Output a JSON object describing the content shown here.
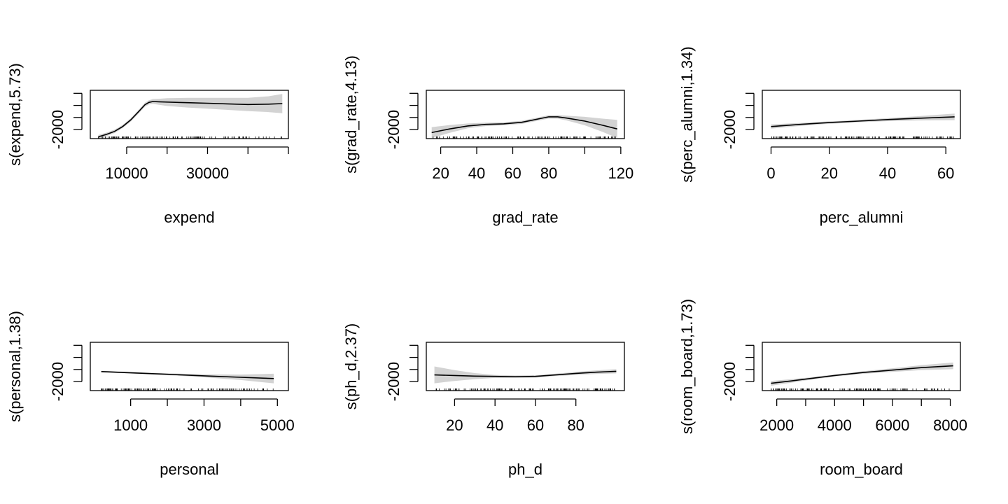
{
  "chart_data": [
    {
      "type": "line",
      "xlabel": "expend",
      "ylabel": "s(expend,5.73)",
      "xlim": [
        1000,
        50000
      ],
      "ylim": [
        -3500,
        4500
      ],
      "xticks": [
        10000,
        20000,
        30000,
        40000,
        50000
      ],
      "xtick_labels": [
        "10000",
        "",
        "30000",
        "",
        ""
      ],
      "yticks": [
        -2000,
        0,
        2000,
        4000
      ],
      "ytick_labels": [
        "-2000",
        "",
        "",
        ""
      ],
      "series": [
        {
          "x": [
            3000,
            5000,
            7000,
            9000,
            11000,
            13000,
            14500,
            15500,
            16500,
            18000,
            20000,
            25000,
            30000,
            35000,
            40000,
            45000,
            48500
          ],
          "y": [
            -3200,
            -2800,
            -2300,
            -1500,
            -400,
            1000,
            2100,
            2500,
            2650,
            2600,
            2550,
            2450,
            2350,
            2250,
            2150,
            2200,
            2300
          ],
          "ci_width": [
            300,
            280,
            270,
            260,
            280,
            300,
            320,
            350,
            400,
            500,
            650,
            800,
            900,
            1000,
            1100,
            1300,
            1600
          ]
        }
      ]
    },
    {
      "type": "line",
      "xlabel": "grad_rate",
      "ylabel": "s(grad_rate,4.13)",
      "xlim": [
        12,
        122
      ],
      "ylim": [
        -3500,
        4500
      ],
      "xticks": [
        20,
        40,
        60,
        80,
        100,
        120
      ],
      "xtick_labels": [
        "20",
        "40",
        "60",
        "80",
        "",
        "120"
      ],
      "yticks": [
        -2000,
        0,
        2000,
        4000
      ],
      "ytick_labels": [
        "-2000",
        "",
        "",
        ""
      ],
      "series": [
        {
          "x": [
            15,
            25,
            35,
            45,
            55,
            65,
            75,
            80,
            85,
            90,
            100,
            110,
            118
          ],
          "y": [
            -2500,
            -1900,
            -1400,
            -1150,
            -1050,
            -800,
            -200,
            100,
            100,
            -100,
            -600,
            -1300,
            -1900
          ],
          "ci_width": [
            900,
            650,
            400,
            280,
            250,
            260,
            270,
            280,
            300,
            400,
            700,
            1100,
            1500
          ]
        }
      ]
    },
    {
      "type": "line",
      "xlabel": "perc_alumni",
      "ylabel": "s(perc_alumni,1.34)",
      "xlim": [
        -3,
        65
      ],
      "ylim": [
        -3500,
        4500
      ],
      "xticks": [
        0,
        20,
        40,
        60
      ],
      "xtick_labels": [
        "0",
        "20",
        "40",
        "60"
      ],
      "yticks": [
        -2000,
        0,
        2000,
        4000
      ],
      "ytick_labels": [
        "-2000",
        "",
        "",
        ""
      ],
      "series": [
        {
          "x": [
            0,
            10,
            20,
            30,
            40,
            50,
            60,
            63
          ],
          "y": [
            -1500,
            -1150,
            -850,
            -600,
            -350,
            -150,
            50,
            100
          ],
          "ci_width": [
            350,
            250,
            200,
            200,
            250,
            350,
            500,
            550
          ]
        }
      ]
    },
    {
      "type": "line",
      "xlabel": "personal",
      "ylabel": "s(personal,1.38)",
      "xlim": [
        -100,
        5300
      ],
      "ylim": [
        -3500,
        4500
      ],
      "xticks": [
        1000,
        2000,
        3000,
        4000,
        5000
      ],
      "xtick_labels": [
        "1000",
        "",
        "3000",
        "",
        "5000"
      ],
      "yticks": [
        -2000,
        0,
        2000,
        4000
      ],
      "ytick_labels": [
        "-2000",
        "",
        "",
        ""
      ],
      "series": [
        {
          "x": [
            200,
            1000,
            2000,
            3000,
            4000,
            4900
          ],
          "y": [
            -350,
            -550,
            -800,
            -1050,
            -1300,
            -1500
          ],
          "ci_width": [
            150,
            120,
            150,
            250,
            450,
            800
          ]
        }
      ]
    },
    {
      "type": "line",
      "xlabel": "ph_d",
      "ylabel": "s(ph_d,2.37)",
      "xlim": [
        6,
        104
      ],
      "ylim": [
        -3500,
        4500
      ],
      "xticks": [
        20,
        40,
        60,
        80
      ],
      "xtick_labels": [
        "20",
        "40",
        "60",
        "80"
      ],
      "yticks": [
        -2000,
        0,
        2000,
        4000
      ],
      "ytick_labels": [
        "-2000",
        "",
        "",
        ""
      ],
      "series": [
        {
          "x": [
            10,
            20,
            30,
            40,
            50,
            60,
            70,
            80,
            90,
            100
          ],
          "y": [
            -900,
            -1000,
            -1100,
            -1150,
            -1200,
            -1150,
            -900,
            -650,
            -450,
            -300
          ],
          "ci_width": [
            1400,
            900,
            500,
            250,
            200,
            200,
            200,
            250,
            300,
            350
          ]
        }
      ]
    },
    {
      "type": "line",
      "xlabel": "room_board",
      "ylabel": "s(room_board,1.73)",
      "xlim": [
        1500,
        8350
      ],
      "ylim": [
        -3500,
        4500
      ],
      "xticks": [
        2000,
        3000,
        4000,
        5000,
        6000,
        7000,
        8000
      ],
      "xtick_labels": [
        "2000",
        "",
        "4000",
        "",
        "6000",
        "",
        "8000"
      ],
      "yticks": [
        -2000,
        0,
        2000,
        4000
      ],
      "ytick_labels": [
        "-2000",
        "",
        "",
        ""
      ],
      "series": [
        {
          "x": [
            1800,
            2500,
            3000,
            4000,
            5000,
            6000,
            7000,
            8100
          ],
          "y": [
            -2300,
            -1900,
            -1600,
            -1000,
            -500,
            -100,
            300,
            600
          ],
          "ci_width": [
            400,
            300,
            220,
            180,
            220,
            300,
            420,
            550
          ]
        }
      ]
    }
  ]
}
